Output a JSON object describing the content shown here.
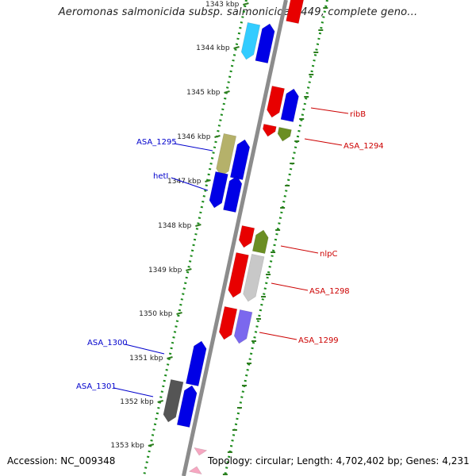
{
  "title": "Aeromonas salmonicida subsp. salmonicida A449, complete geno...",
  "footer": {
    "accession": "Accession: NC_009348",
    "topology": "Topology: circular; Length: 4,702,402 bp; Genes: 4,231"
  },
  "colors": {
    "backbone": "#8c8c8c",
    "guide": "#1a8a1a",
    "kbp_tick": "#2e7d1f",
    "left_label": "#0000cc",
    "right_label": "#cc0000"
  },
  "kbp_ticks": [
    "1343 kbp",
    "1344 kbp",
    "1345 kbp",
    "1346 kbp",
    "1347 kbp",
    "1348 kbp",
    "1349 kbp",
    "1350 kbp",
    "1351 kbp",
    "1352 kbp",
    "1353 kbp"
  ],
  "left_labels": [
    "ASA_1295",
    "hetI",
    "ASA_1300",
    "ASA_1301"
  ],
  "right_labels": [
    "ribB",
    "ASA_1294",
    "nlpC",
    "ASA_1298",
    "ASA_1299"
  ],
  "genes": [
    {
      "lane": "R1",
      "strand": "up",
      "color": "red"
    },
    {
      "lane": "L1",
      "strand": "down",
      "color": "cyan"
    },
    {
      "lane": "L2",
      "strand": "up",
      "color": "blue"
    },
    {
      "lane": "R1",
      "strand": "down",
      "color": "red"
    },
    {
      "lane": "R2",
      "strand": "up",
      "color": "blue"
    },
    {
      "lane": "R1",
      "strand": "down",
      "color": "red"
    },
    {
      "lane": "R2",
      "strand": "down",
      "color": "olive"
    },
    {
      "lane": "L1",
      "strand": "down",
      "color": "khaki"
    },
    {
      "lane": "L2",
      "strand": "up",
      "color": "blue"
    },
    {
      "lane": "L1",
      "strand": "down",
      "color": "blue"
    },
    {
      "lane": "L2",
      "strand": "up",
      "color": "blue"
    },
    {
      "lane": "R1",
      "strand": "down",
      "color": "red"
    },
    {
      "lane": "R2",
      "strand": "up",
      "color": "olive"
    },
    {
      "lane": "R1",
      "strand": "down",
      "color": "red"
    },
    {
      "lane": "R2",
      "strand": "down",
      "color": "silver"
    },
    {
      "lane": "R1",
      "strand": "down",
      "color": "red"
    },
    {
      "lane": "R2",
      "strand": "down",
      "color": "slateblue"
    },
    {
      "lane": "L2",
      "strand": "up",
      "color": "blue"
    },
    {
      "lane": "L1",
      "strand": "down",
      "color": "dimgray"
    },
    {
      "lane": "L2",
      "strand": "up",
      "color": "blue"
    },
    {
      "lane": "R1",
      "strand": "down",
      "color": "pink"
    },
    {
      "lane": "R1",
      "strand": "up",
      "color": "pink"
    }
  ]
}
